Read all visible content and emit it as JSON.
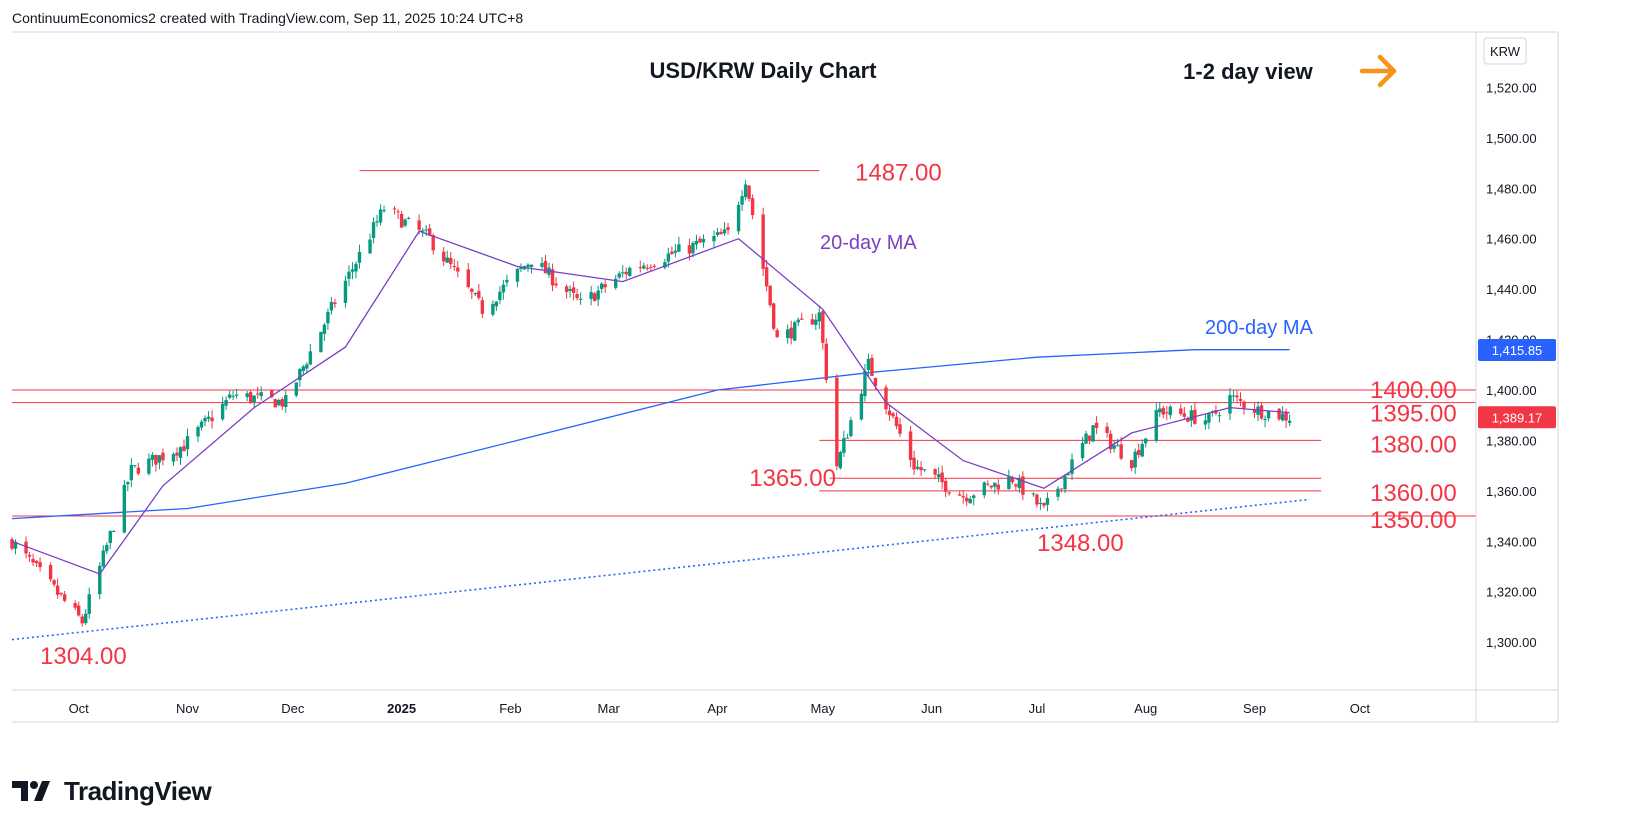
{
  "header": {
    "credit": "ContinuumEconomics2 created with TradingView.com, Sep 11, 2025 10:24 UTC+8"
  },
  "footer": {
    "brand": "TradingView"
  },
  "colors": {
    "up": "#089981",
    "down": "#f23645",
    "ma20": "#7b3fc4",
    "ma200": "#2962ff",
    "level": "#f23645",
    "trendline": "#2962ff",
    "arrow": "#f7931a",
    "axis_text": "#131722"
  },
  "icons": {
    "arrow": "right-arrow-icon",
    "logo": "tradingview-logo-icon"
  },
  "chart_data": {
    "type": "candlestick",
    "title": "USD/KRW Daily Chart",
    "view_label": "1-2 day view",
    "currency_label": "KRW",
    "x_ticks": [
      "Oct",
      "Nov",
      "Dec",
      "2025",
      "Feb",
      "Mar",
      "Apr",
      "May",
      "Jun",
      "Jul",
      "Aug",
      "Sep",
      "Oct"
    ],
    "y_ticks": [
      1300,
      1320,
      1340,
      1360,
      1380,
      1400,
      1420,
      1440,
      1460,
      1480,
      1500,
      1520
    ],
    "y_tick_labels": [
      "1,300.00",
      "1,320.00",
      "1,340.00",
      "1,360.00",
      "1,380.00",
      "1,400.00",
      "1,420.00",
      "1,440.00",
      "1,460.00",
      "1,480.00",
      "1,500.00",
      "1,520.00"
    ],
    "ylim": [
      1281,
      1542
    ],
    "price_labels": [
      {
        "label": "1,415.85",
        "value": 1415.85,
        "color": "#2962ff"
      },
      {
        "label": "1,389.17",
        "value": 1389.17,
        "color": "#f23645"
      }
    ],
    "levels": [
      {
        "label": "1487.00",
        "value": 1487
      },
      {
        "label": "1400.00",
        "value": 1400
      },
      {
        "label": "1395.00",
        "value": 1395
      },
      {
        "label": "1380.00",
        "value": 1380
      },
      {
        "label": "1365.00",
        "value": 1365
      },
      {
        "label": "1360.00",
        "value": 1360
      },
      {
        "label": "1350.00",
        "value": 1350
      },
      {
        "label": "1348.00",
        "value": 1348
      },
      {
        "label": "1304.00",
        "value": 1304
      }
    ],
    "annotations": [
      {
        "text": "20-day MA",
        "color": "#7b3fc4"
      },
      {
        "text": "200-day MA",
        "color": "#2962ff"
      }
    ],
    "trendline": {
      "from": {
        "date": "2024-09-12",
        "value": 1301
      },
      "to": {
        "date": "2025-09-11",
        "value": 1356
      },
      "style": "dotted"
    },
    "series_close": [
      {
        "date": "2024-09-12",
        "value": 1340
      },
      {
        "date": "2024-10-02",
        "value": 1308
      },
      {
        "date": "2024-10-16",
        "value": 1368
      },
      {
        "date": "2024-10-31",
        "value": 1378
      },
      {
        "date": "2024-11-14",
        "value": 1398
      },
      {
        "date": "2024-11-29",
        "value": 1395
      },
      {
        "date": "2024-12-13",
        "value": 1435
      },
      {
        "date": "2024-12-27",
        "value": 1472
      },
      {
        "date": "2025-01-09",
        "value": 1460
      },
      {
        "date": "2025-01-24",
        "value": 1432
      },
      {
        "date": "2025-02-07",
        "value": 1452
      },
      {
        "date": "2025-02-21",
        "value": 1434
      },
      {
        "date": "2025-03-07",
        "value": 1448
      },
      {
        "date": "2025-03-21",
        "value": 1455
      },
      {
        "date": "2025-04-04",
        "value": 1462
      },
      {
        "date": "2025-04-09",
        "value": 1484
      },
      {
        "date": "2025-04-18",
        "value": 1420
      },
      {
        "date": "2025-04-30",
        "value": 1430
      },
      {
        "date": "2025-05-05",
        "value": 1370
      },
      {
        "date": "2025-05-14",
        "value": 1410
      },
      {
        "date": "2025-05-27",
        "value": 1370
      },
      {
        "date": "2025-06-10",
        "value": 1358
      },
      {
        "date": "2025-06-24",
        "value": 1365
      },
      {
        "date": "2025-07-03",
        "value": 1352
      },
      {
        "date": "2025-07-17",
        "value": 1385
      },
      {
        "date": "2025-07-28",
        "value": 1372
      },
      {
        "date": "2025-08-05",
        "value": 1392
      },
      {
        "date": "2025-08-19",
        "value": 1388
      },
      {
        "date": "2025-08-25",
        "value": 1397
      },
      {
        "date": "2025-09-02",
        "value": 1392
      },
      {
        "date": "2025-09-11",
        "value": 1389.17
      }
    ],
    "ma20_close": [
      {
        "date": "2024-09-12",
        "value": 1340
      },
      {
        "date": "2024-10-07",
        "value": 1327
      },
      {
        "date": "2024-10-25",
        "value": 1362
      },
      {
        "date": "2024-11-20",
        "value": 1393
      },
      {
        "date": "2024-12-16",
        "value": 1417
      },
      {
        "date": "2025-01-06",
        "value": 1463
      },
      {
        "date": "2025-02-03",
        "value": 1449
      },
      {
        "date": "2025-03-05",
        "value": 1443
      },
      {
        "date": "2025-04-07",
        "value": 1460
      },
      {
        "date": "2025-05-01",
        "value": 1432
      },
      {
        "date": "2025-05-19",
        "value": 1395
      },
      {
        "date": "2025-06-10",
        "value": 1372
      },
      {
        "date": "2025-07-03",
        "value": 1361
      },
      {
        "date": "2025-07-28",
        "value": 1383
      },
      {
        "date": "2025-08-25",
        "value": 1393
      },
      {
        "date": "2025-09-11",
        "value": 1391
      }
    ],
    "ma200_close": [
      {
        "date": "2024-09-12",
        "value": 1349
      },
      {
        "date": "2024-11-01",
        "value": 1353
      },
      {
        "date": "2024-12-16",
        "value": 1363
      },
      {
        "date": "2025-02-03",
        "value": 1380
      },
      {
        "date": "2025-04-01",
        "value": 1400
      },
      {
        "date": "2025-05-15",
        "value": 1407
      },
      {
        "date": "2025-07-01",
        "value": 1413
      },
      {
        "date": "2025-08-15",
        "value": 1416
      },
      {
        "date": "2025-09-11",
        "value": 1416
      }
    ]
  }
}
